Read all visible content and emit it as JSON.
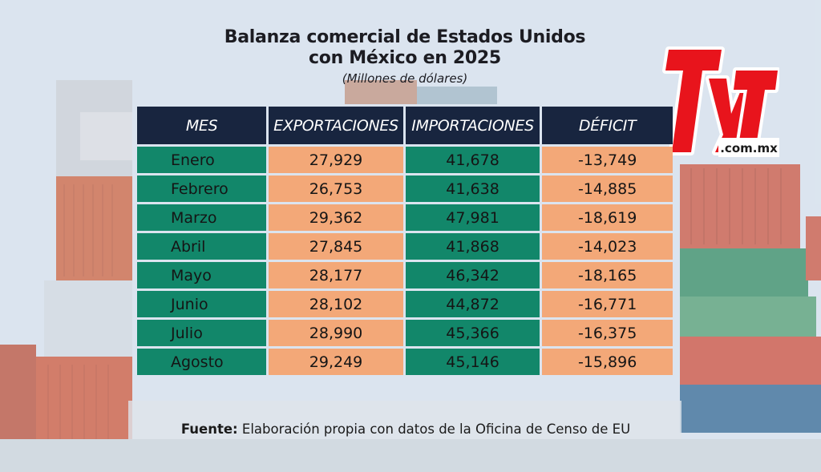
{
  "title": {
    "line1": "Balanza comercial de Estados Unidos",
    "line2": "con México en 2025",
    "subtitle": "(Millones de dólares)"
  },
  "logo": {
    "text": "TyT",
    "domain": ".com.mx",
    "accent": "#e8141c"
  },
  "colors": {
    "header": "#18253f",
    "green": "#12876a",
    "orange": "#f3a878"
  },
  "chart_data": {
    "type": "table",
    "columns": [
      "MES",
      "EXPORTACIONES",
      "IMPORTACIONES",
      "DÉFICIT"
    ],
    "rows": [
      [
        "Enero",
        "27,929",
        "41,678",
        "-13,749"
      ],
      [
        "Febrero",
        "26,753",
        "41,638",
        "-14,885"
      ],
      [
        "Marzo",
        "29,362",
        "47,981",
        "-18,619"
      ],
      [
        "Abril",
        "27,845",
        "41,868",
        "-14,023"
      ],
      [
        "Mayo",
        "28,177",
        "46,342",
        "-18,165"
      ],
      [
        "Junio",
        "28,102",
        "44,872",
        "-16,771"
      ],
      [
        "Julio",
        "28,990",
        "45,366",
        "-16,375"
      ],
      [
        "Agosto",
        "29,249",
        "45,146",
        "-15,896"
      ]
    ]
  },
  "source": {
    "label": "Fuente:",
    "text": "Elaboración propia con datos de la Oficina de Censo de EU"
  }
}
